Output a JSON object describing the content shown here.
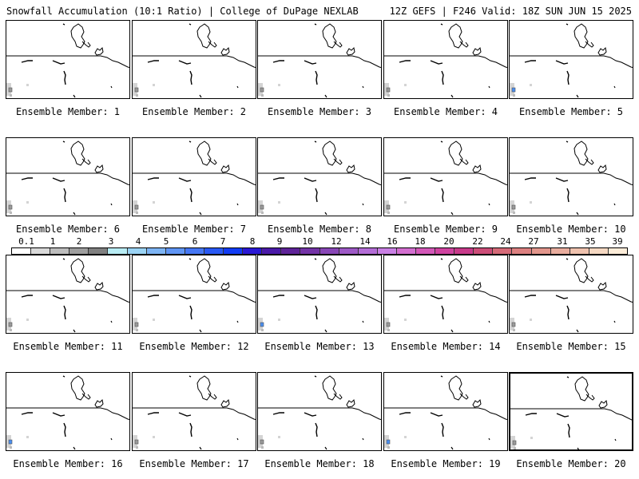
{
  "header": {
    "left": "Snowfall Accumulation (10:1 Ratio) | College of DuPage NEXLAB",
    "right": "12Z GEFS | F246 Valid: 18Z SUN JUN 15 2025"
  },
  "panels": [
    {
      "caption": "Ensemble Member: 1",
      "snow": "light"
    },
    {
      "caption": "Ensemble Member: 2",
      "snow": "light"
    },
    {
      "caption": "Ensemble Member: 3",
      "snow": "light"
    },
    {
      "caption": "Ensemble Member: 4",
      "snow": "light"
    },
    {
      "caption": "Ensemble Member: 5",
      "snow": "blue"
    },
    {
      "caption": "Ensemble Member: 6",
      "snow": "light"
    },
    {
      "caption": "Ensemble Member: 7",
      "snow": "light"
    },
    {
      "caption": "Ensemble Member: 8",
      "snow": "light"
    },
    {
      "caption": "Ensemble Member: 9",
      "snow": "light"
    },
    {
      "caption": "Ensemble Member: 10",
      "snow": "light"
    },
    {
      "caption": "Ensemble Member: 11",
      "snow": "light"
    },
    {
      "caption": "Ensemble Member: 12",
      "snow": "light"
    },
    {
      "caption": "Ensemble Member: 13",
      "snow": "blue"
    },
    {
      "caption": "Ensemble Member: 14",
      "snow": "light"
    },
    {
      "caption": "Ensemble Member: 15",
      "snow": "light"
    },
    {
      "caption": "Ensemble Member: 16",
      "snow": "blue"
    },
    {
      "caption": "Ensemble Member: 17",
      "snow": "light"
    },
    {
      "caption": "Ensemble Member: 18",
      "snow": "light"
    },
    {
      "caption": "Ensemble Member: 19",
      "snow": "blue"
    },
    {
      "caption": "Ensemble Member: 20",
      "snow": "light"
    }
  ],
  "colorbar": {
    "labels": [
      "0.1",
      "1",
      "2",
      "3",
      "4",
      "5",
      "6",
      "7",
      "8",
      "9",
      "10",
      "12",
      "14",
      "16",
      "18",
      "20",
      "22",
      "24",
      "27",
      "31",
      "35",
      "39"
    ],
    "colors": [
      "#ffffff",
      "#d9d9d9",
      "#bdbdbd",
      "#9e9e9e",
      "#808080",
      "#b8ecf4",
      "#9ad3f4",
      "#7db4f4",
      "#5f95f4",
      "#4577f4",
      "#2959f4",
      "#123cf4",
      "#2a18d4",
      "#4a1aa8",
      "#5e2398",
      "#7333a6",
      "#8846b6",
      "#9d59c6",
      "#b36cd6",
      "#c97fe4",
      "#d36ed0",
      "#d357b8",
      "#cf43a0",
      "#c73a8a",
      "#cc4d78",
      "#d56a78",
      "#dc8080",
      "#e2968c",
      "#e9ad9e",
      "#efc2ae",
      "#f5d8c2",
      "#fcecd8"
    ]
  }
}
